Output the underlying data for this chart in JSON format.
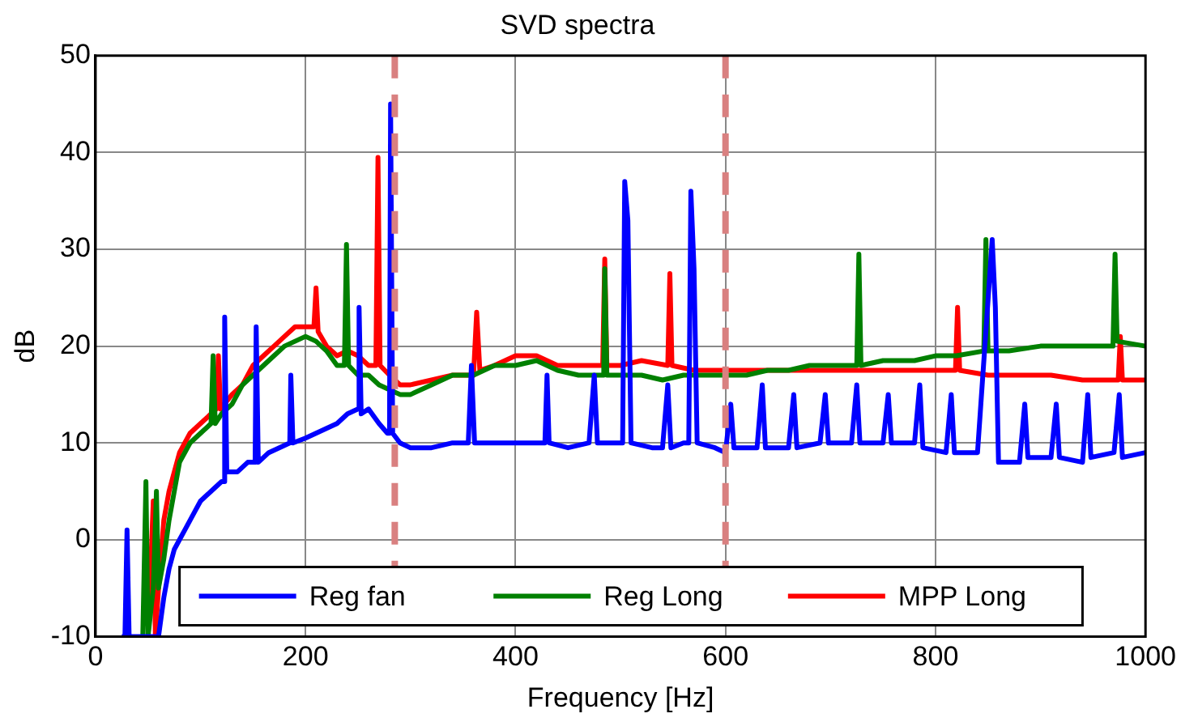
{
  "chart_data": {
    "type": "line",
    "title": "SVD spectra",
    "xlabel": "Frequency [Hz]",
    "ylabel": "dB",
    "xlim": [
      0,
      1000
    ],
    "xticks": [
      0,
      200,
      400,
      600,
      800,
      1000
    ],
    "ylim": [
      -10,
      50
    ],
    "yticks": [
      -10,
      0,
      10,
      20,
      30,
      40,
      50
    ],
    "grid": true,
    "legend": "bottom",
    "marker": "none",
    "line_style": "solid",
    "ref_lines": [
      {
        "axis": "x",
        "value": 285,
        "color": "#d98080",
        "line_style": "dashed"
      },
      {
        "axis": "x",
        "value": 600,
        "color": "#d98080",
        "line_style": "dashed"
      }
    ],
    "series": [
      {
        "name": "Reg fan",
        "color": "#0000ff",
        "x": [
          25,
          28,
          30,
          32,
          60,
          65,
          70,
          75,
          80,
          85,
          90,
          95,
          100,
          110,
          120,
          122,
          123,
          125,
          135,
          145,
          152,
          153,
          155,
          165,
          175,
          185,
          186,
          188,
          200,
          210,
          220,
          230,
          240,
          250,
          251,
          253,
          260,
          270,
          278,
          280,
          281,
          283,
          290,
          300,
          320,
          340,
          355,
          358,
          361,
          380,
          400,
          420,
          428,
          430,
          432,
          450,
          470,
          475,
          478,
          495,
          502,
          504,
          507,
          510,
          530,
          540,
          545,
          548,
          560,
          565,
          567,
          570,
          573,
          590,
          600,
          605,
          608,
          630,
          635,
          638,
          660,
          665,
          668,
          690,
          695,
          698,
          720,
          725,
          728,
          750,
          755,
          758,
          780,
          785,
          788,
          810,
          815,
          818,
          835,
          840,
          854,
          857,
          860,
          880,
          885,
          888,
          910,
          915,
          918,
          940,
          945,
          948,
          970,
          975,
          978,
          1000
        ],
        "values": [
          -10,
          -10,
          1,
          -10,
          -10,
          -6,
          -3,
          -1,
          0,
          1,
          2,
          3,
          4,
          5,
          6,
          6,
          23,
          7,
          7,
          8,
          8,
          22,
          8,
          9,
          9.5,
          10,
          17,
          10,
          10.5,
          11,
          11.5,
          12,
          13,
          13.5,
          24,
          13,
          13.5,
          12,
          11,
          11,
          45,
          11,
          10,
          9.5,
          9.5,
          10,
          10,
          18,
          10,
          10,
          10,
          10,
          10,
          17,
          10,
          9.5,
          10,
          17,
          10,
          10,
          10,
          37,
          33,
          10,
          9.5,
          9.5,
          16,
          9.5,
          10,
          10,
          36,
          28,
          10,
          9.5,
          9,
          14,
          9.5,
          9.5,
          16,
          9.5,
          9.5,
          15,
          9.5,
          10,
          15,
          10,
          10,
          16,
          10,
          10,
          15,
          10,
          10,
          16,
          9.5,
          9,
          15,
          9,
          9,
          9,
          31,
          24,
          8,
          8,
          14,
          8.5,
          8.5,
          14,
          8.5,
          8,
          15,
          8.5,
          9,
          15,
          8.5,
          9
        ]
      },
      {
        "name": "Reg Long",
        "color": "#008000",
        "x": [
          45,
          48,
          50,
          55,
          58,
          60,
          65,
          70,
          75,
          80,
          90,
          100,
          110,
          112,
          114,
          120,
          130,
          140,
          150,
          160,
          170,
          180,
          190,
          200,
          210,
          220,
          230,
          237,
          239,
          241,
          250,
          260,
          270,
          280,
          290,
          300,
          320,
          340,
          360,
          380,
          400,
          420,
          440,
          460,
          484,
          485,
          487,
          500,
          520,
          540,
          560,
          580,
          600,
          620,
          640,
          660,
          680,
          700,
          725,
          727,
          729,
          750,
          780,
          800,
          820,
          846,
          848,
          850,
          870,
          900,
          930,
          950,
          969,
          971,
          973,
          1000
        ],
        "values": [
          -10,
          6,
          -10,
          -5,
          5,
          -5,
          -2,
          2,
          5,
          8,
          10,
          11,
          12,
          19,
          12,
          13,
          14,
          16,
          17,
          18,
          19,
          20,
          20.5,
          21,
          20.5,
          19.5,
          18,
          18,
          30.5,
          18,
          17,
          17,
          16,
          15.5,
          15,
          15,
          16,
          17,
          17,
          18,
          18,
          18.5,
          17.5,
          17,
          17,
          28,
          17,
          17,
          17,
          16.5,
          17,
          17,
          17,
          17,
          17.5,
          17.5,
          18,
          18,
          18,
          29.5,
          18,
          18.5,
          18.5,
          19,
          19,
          19.5,
          31,
          19.5,
          19.5,
          20,
          20,
          20,
          20,
          29.5,
          20.5,
          20
        ]
      },
      {
        "name": "MPP Long",
        "color": "#ff0000",
        "x": [
          50,
          55,
          57,
          60,
          65,
          70,
          75,
          80,
          90,
          100,
          110,
          115,
          117,
          119,
          130,
          140,
          150,
          160,
          170,
          180,
          190,
          200,
          208,
          210,
          212,
          220,
          230,
          240,
          250,
          260,
          267,
          269,
          271,
          280,
          290,
          300,
          320,
          340,
          360,
          363,
          366,
          380,
          400,
          420,
          440,
          460,
          483,
          485,
          487,
          500,
          520,
          545,
          547,
          549,
          570,
          600,
          640,
          680,
          720,
          760,
          800,
          819,
          821,
          823,
          850,
          880,
          910,
          940,
          974,
          976,
          978,
          1000
        ],
        "values": [
          -10,
          4,
          -10,
          -5,
          2,
          5,
          7,
          9,
          11,
          12,
          13,
          13.5,
          19,
          13.5,
          15,
          16,
          18,
          19,
          20,
          21,
          22,
          22,
          22,
          26,
          21.5,
          20,
          19,
          19.5,
          19,
          18,
          18,
          39.5,
          18,
          17,
          16,
          16,
          16.5,
          17,
          17,
          23.5,
          17.5,
          18,
          19,
          19,
          18,
          18,
          18,
          29,
          18,
          18,
          18.5,
          18,
          27.5,
          18,
          17.5,
          17.5,
          17.5,
          17.5,
          17.5,
          17.5,
          17.5,
          17.5,
          24,
          17.5,
          17,
          17,
          17,
          16.5,
          16.5,
          21,
          16.5,
          16.5
        ]
      }
    ]
  }
}
